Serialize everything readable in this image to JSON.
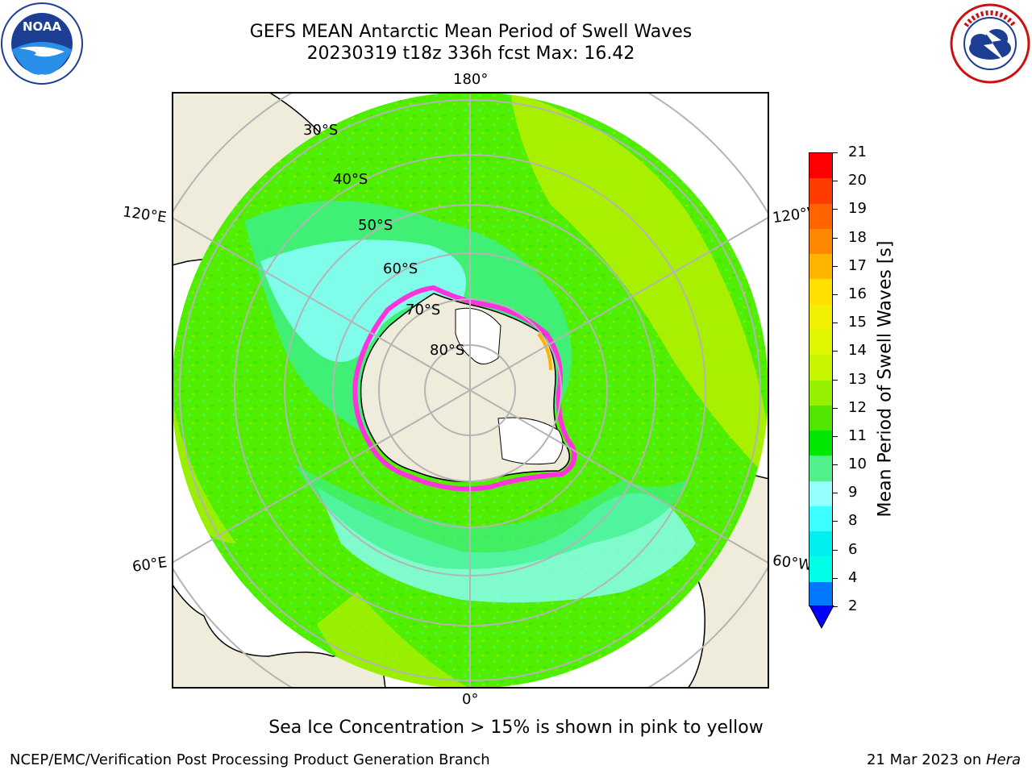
{
  "title": {
    "line1": "GEFS MEAN Antarctic Mean Period of Swell Waves",
    "line2": "20230319 t18z 336h fcst   Max: 16.42"
  },
  "logos": {
    "left": "noaa-logo",
    "left_text": "NOAA",
    "left_ring_text": "NATIONAL OCEANIC AND ATMOSPHERIC ADMINISTRATION · U.S. DEPARTMENT OF COMMERCE",
    "right": "national-weather-service-logo",
    "right_ring_text": "NATIONAL WEATHER SERVICE"
  },
  "map": {
    "projection": "south-polar-stereographic",
    "longitude_labels": {
      "top": "180°",
      "bottom": "0°",
      "left_upper": "120°E",
      "left_lower": "60°E",
      "right_upper": "120°W",
      "right_lower": "60°W"
    },
    "latitude_labels": [
      "30°S",
      "40°S",
      "50°S",
      "60°S",
      "70°S",
      "80°S"
    ],
    "colors": {
      "land": "#efecdc",
      "ice_edge": "#ff33dd",
      "grid": "#b4b4b4"
    }
  },
  "colorbar": {
    "label": "Mean Period of Swell Waves [s]",
    "ticks": [
      "21",
      "20",
      "19",
      "18",
      "17",
      "16",
      "15",
      "14",
      "13",
      "12",
      "11",
      "10",
      "9",
      "8",
      "6",
      "4",
      "2"
    ],
    "colors": [
      "#ff0000",
      "#ff3c00",
      "#ff6400",
      "#ff8800",
      "#ffb400",
      "#ffe000",
      "#f0f000",
      "#e0f500",
      "#c8f500",
      "#96f000",
      "#50e600",
      "#00e600",
      "#50f08c",
      "#96ffff",
      "#3cffff",
      "#00f0f0",
      "#00ffe6",
      "#0078ff"
    ],
    "extend_color": "#0000ff",
    "range": [
      2,
      21
    ],
    "extend": "min"
  },
  "footnote": "Sea Ice Concentration > 15% is shown in pink to yellow",
  "credits": {
    "left": "NCEP/EMC/Verification Post Processing Product Generation Branch",
    "right_date": "21 Mar 2023 on ",
    "right_host": "Hera"
  }
}
